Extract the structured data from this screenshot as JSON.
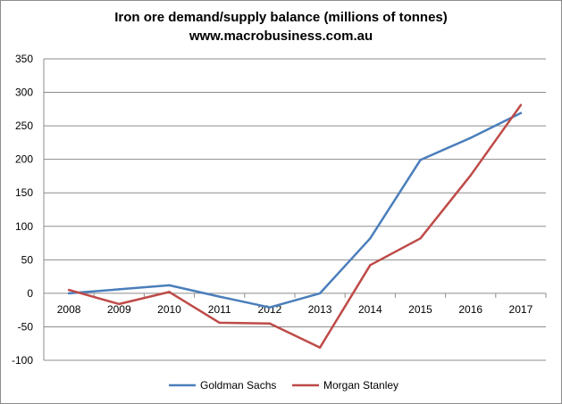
{
  "chart_data": {
    "type": "line",
    "title": "Iron ore demand/supply balance (millions of tonnes)",
    "subtitle": "www.macrobusiness.com.au",
    "xlabel": "",
    "ylabel": "",
    "categories": [
      "2008",
      "2009",
      "2010",
      "2011",
      "2012",
      "2013",
      "2014",
      "2015",
      "2016",
      "2017"
    ],
    "ylim": [
      -100,
      350
    ],
    "yticks": [
      -100,
      -50,
      0,
      50,
      100,
      150,
      200,
      250,
      300,
      350
    ],
    "grid": true,
    "legend_position": "bottom",
    "series": [
      {
        "name": "Goldman Sachs",
        "color": "#4a7ebb",
        "values": [
          0,
          6,
          12,
          -5,
          -21,
          0,
          82,
          199,
          232,
          269
        ]
      },
      {
        "name": "Morgan Stanley",
        "color": "#be4b48",
        "values": [
          5,
          -16,
          2,
          -44,
          -45,
          -81,
          42,
          82,
          176,
          281
        ]
      }
    ]
  }
}
